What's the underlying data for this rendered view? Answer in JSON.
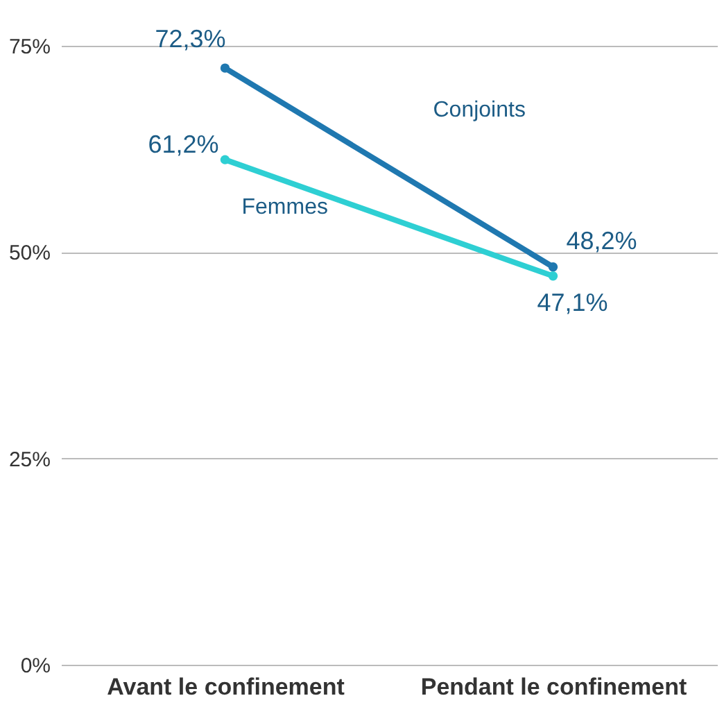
{
  "chart_data": {
    "type": "line",
    "categories": [
      "Avant le confinement",
      "Pendant le confinement"
    ],
    "series": [
      {
        "name": "Conjoints",
        "color": "#1f78b0",
        "values": [
          72.3,
          48.2
        ],
        "value_labels": [
          "72,3%",
          "48,2%"
        ]
      },
      {
        "name": "Femmes",
        "color": "#2ecfd3",
        "values": [
          61.2,
          47.1
        ],
        "value_labels": [
          "61,2%",
          "47,1%"
        ]
      }
    ],
    "ylim": [
      0,
      75
    ],
    "yticks": [
      {
        "value": 0,
        "label": "0%"
      },
      {
        "value": 25,
        "label": "25%"
      },
      {
        "value": 50,
        "label": "50%"
      },
      {
        "value": 75,
        "label": "75%"
      }
    ],
    "grid": "y",
    "marker": "circle",
    "line_style": "solid"
  }
}
